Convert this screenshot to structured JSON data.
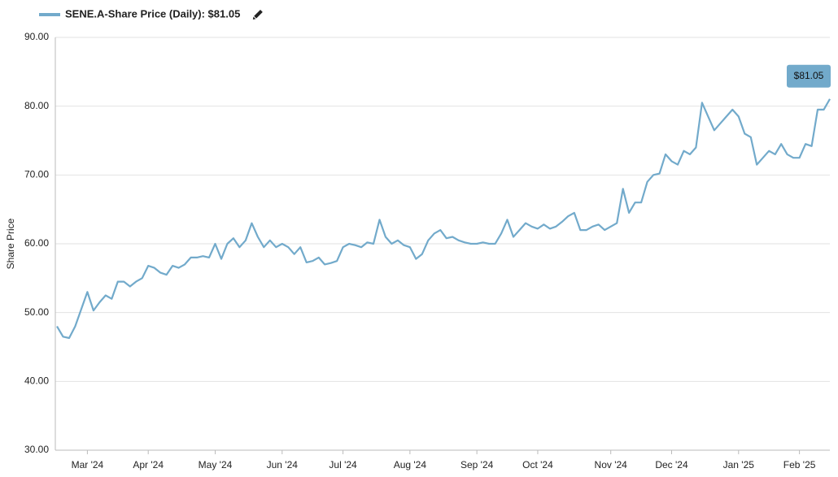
{
  "chart_data": {
    "type": "line",
    "y_label": "Share Price",
    "categories": [
      null,
      null,
      null,
      null,
      null,
      "Mar '24",
      null,
      null,
      null,
      null,
      null,
      null,
      null,
      null,
      null,
      "Apr '24",
      null,
      null,
      null,
      null,
      null,
      null,
      null,
      null,
      null,
      null,
      "May '24",
      null,
      null,
      null,
      null,
      null,
      null,
      null,
      null,
      null,
      null,
      "Jun '24",
      null,
      null,
      null,
      null,
      null,
      null,
      null,
      null,
      null,
      "Jul '24",
      null,
      null,
      null,
      null,
      null,
      null,
      null,
      null,
      null,
      null,
      "Aug '24",
      null,
      null,
      null,
      null,
      null,
      null,
      null,
      null,
      null,
      null,
      "Sep '24",
      null,
      null,
      null,
      null,
      null,
      null,
      null,
      null,
      null,
      "Oct '24",
      null,
      null,
      null,
      null,
      null,
      null,
      null,
      null,
      null,
      null,
      null,
      "Nov '24",
      null,
      null,
      null,
      null,
      null,
      null,
      null,
      null,
      null,
      "Dec '24",
      null,
      null,
      null,
      null,
      null,
      null,
      null,
      null,
      null,
      null,
      "Jan '25",
      null,
      null,
      null,
      null,
      null,
      null,
      null,
      null,
      null,
      "Feb '25",
      null,
      null,
      null,
      null,
      null
    ],
    "series": [
      {
        "name": "SENE.A-Share Price (Daily): $81.05",
        "color": "#72aacb",
        "values": [
          48,
          46.5,
          46.3,
          48,
          50.5,
          53,
          50.3,
          51.5,
          52.5,
          52,
          54.5,
          54.5,
          53.8,
          54.5,
          55,
          56.8,
          56.5,
          55.8,
          55.5,
          56.8,
          56.5,
          57,
          58,
          58,
          58.2,
          58,
          60,
          57.8,
          60,
          60.8,
          59.5,
          60.5,
          63,
          61,
          59.5,
          60.5,
          59.5,
          60,
          59.5,
          58.5,
          59.5,
          57.3,
          57.5,
          58,
          57,
          57.2,
          57.5,
          59.5,
          60,
          59.8,
          59.5,
          60.2,
          60,
          63.5,
          61,
          60,
          60.5,
          59.8,
          59.5,
          57.8,
          58.5,
          60.5,
          61.5,
          62,
          60.8,
          61,
          60.5,
          60.2,
          60,
          60,
          60.2,
          60,
          60,
          61.5,
          63.5,
          61,
          62,
          63,
          62.5,
          62.2,
          62.8,
          62.2,
          62.5,
          63.2,
          64,
          64.5,
          62,
          62,
          62.5,
          62.8,
          62,
          62.5,
          63,
          68,
          64.5,
          66,
          66,
          69,
          70,
          70.2,
          73,
          72,
          71.5,
          73.5,
          73,
          74,
          80.5,
          78.5,
          76.5,
          77.5,
          78.5,
          79.5,
          78.5,
          76,
          75.5,
          71.5,
          72.5,
          73.5,
          73,
          74.5,
          73,
          72.5,
          72.5,
          74.5,
          74.2,
          79.5,
          79.5,
          81.05
        ]
      }
    ],
    "annotation": "$81.05",
    "ylim": [
      30,
      90
    ],
    "yticks": [
      {
        "value": 30,
        "label": "30.00"
      },
      {
        "value": 40,
        "label": "40.00"
      },
      {
        "value": 50,
        "label": "50.00"
      },
      {
        "value": 60,
        "label": "60.00"
      },
      {
        "value": 70,
        "label": "70.00"
      },
      {
        "value": 80,
        "label": "80.00"
      },
      {
        "value": 90,
        "label": "90.00"
      }
    ],
    "grid": true
  }
}
